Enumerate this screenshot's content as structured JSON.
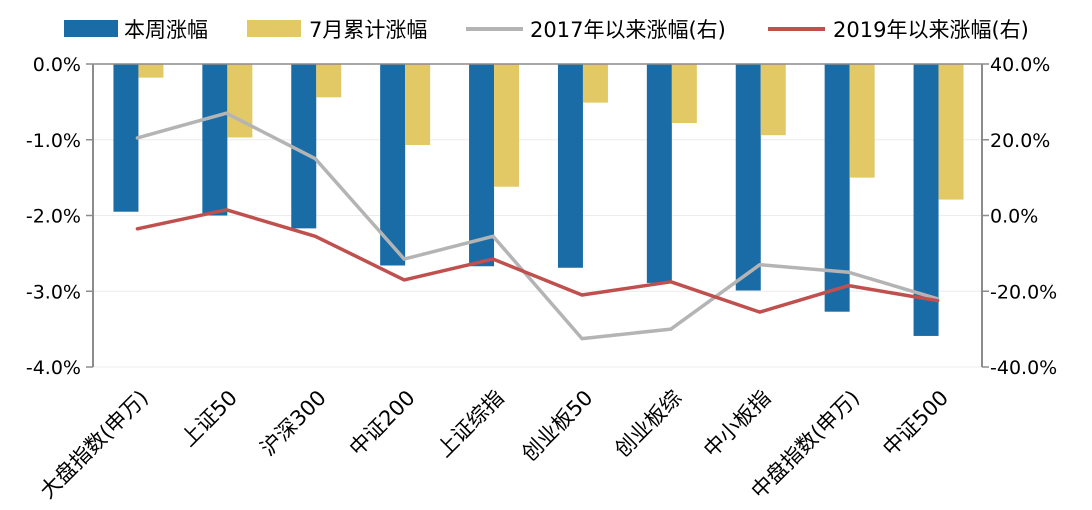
{
  "chart_data": {
    "type": "bar",
    "categories": [
      "大盘指数(申万)",
      "上证50",
      "沪深300",
      "中证200",
      "上证综指",
      "创业板50",
      "创业板综",
      "中小板指",
      "中盘指数(申万)",
      "中证500"
    ],
    "left_axis": {
      "ticks": [
        "0.0%",
        "-1.0%",
        "-2.0%",
        "-3.0%",
        "-4.0%"
      ],
      "ylim": [
        -4.0,
        0.0
      ]
    },
    "right_axis": {
      "ticks": [
        "40.0%",
        "20.0%",
        "0.0%",
        "-20.0%",
        "-40.0%"
      ],
      "ylim": [
        -40,
        40
      ]
    },
    "series": [
      {
        "name": "本周涨幅",
        "kind": "bar",
        "axis": "left",
        "color": "#1a6ca7",
        "values": [
          -1.95,
          -2.0,
          -2.17,
          -2.66,
          -2.67,
          -2.69,
          -2.89,
          -2.99,
          -3.27,
          -3.59
        ]
      },
      {
        "name": "7月累计涨幅",
        "kind": "bar",
        "axis": "left",
        "color": "#e2c966",
        "values": [
          -0.18,
          -0.97,
          -0.44,
          -1.07,
          -1.62,
          -0.51,
          -0.78,
          -0.94,
          -1.5,
          -1.79
        ]
      },
      {
        "name": "2017年以来涨幅(右)",
        "kind": "line",
        "axis": "right",
        "color": "#b4b4b4",
        "values": [
          20.5,
          27.0,
          15.0,
          -11.5,
          -5.5,
          -32.5,
          -30.0,
          -13.0,
          -15.0,
          -22.0
        ]
      },
      {
        "name": "2019年以来涨幅(右)",
        "kind": "line",
        "axis": "right",
        "color": "#c0504d",
        "values": [
          -3.5,
          1.5,
          -5.5,
          -17.0,
          -11.5,
          -21.0,
          -17.5,
          -25.5,
          -18.5,
          -22.5
        ]
      }
    ],
    "legend_position": "top",
    "grid": true
  }
}
